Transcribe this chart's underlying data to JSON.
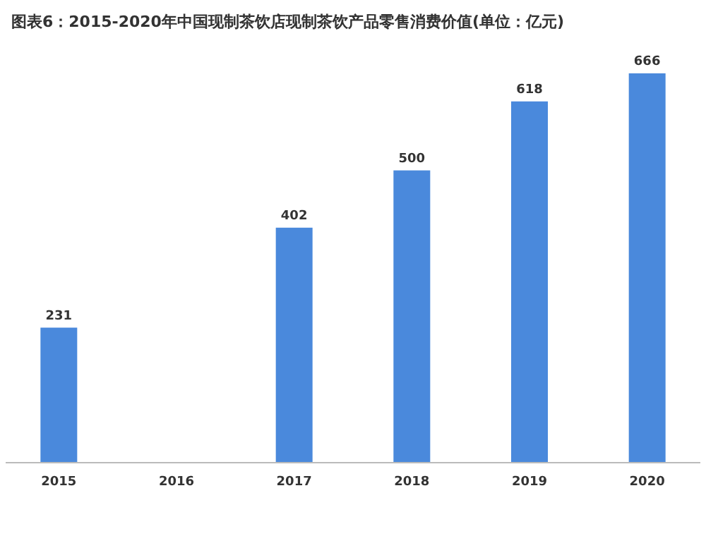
{
  "chart_data": {
    "type": "bar",
    "title": "图表6：2015-2020年中国现制茶饮店现制茶饮产品零售消费价值(单位：亿元)",
    "categories": [
      "2015",
      "2016",
      "2017",
      "2018",
      "2019",
      "2020"
    ],
    "values": [
      231,
      null,
      402,
      500,
      618,
      666
    ],
    "color": "#4a89dc",
    "data_labels": true
  }
}
